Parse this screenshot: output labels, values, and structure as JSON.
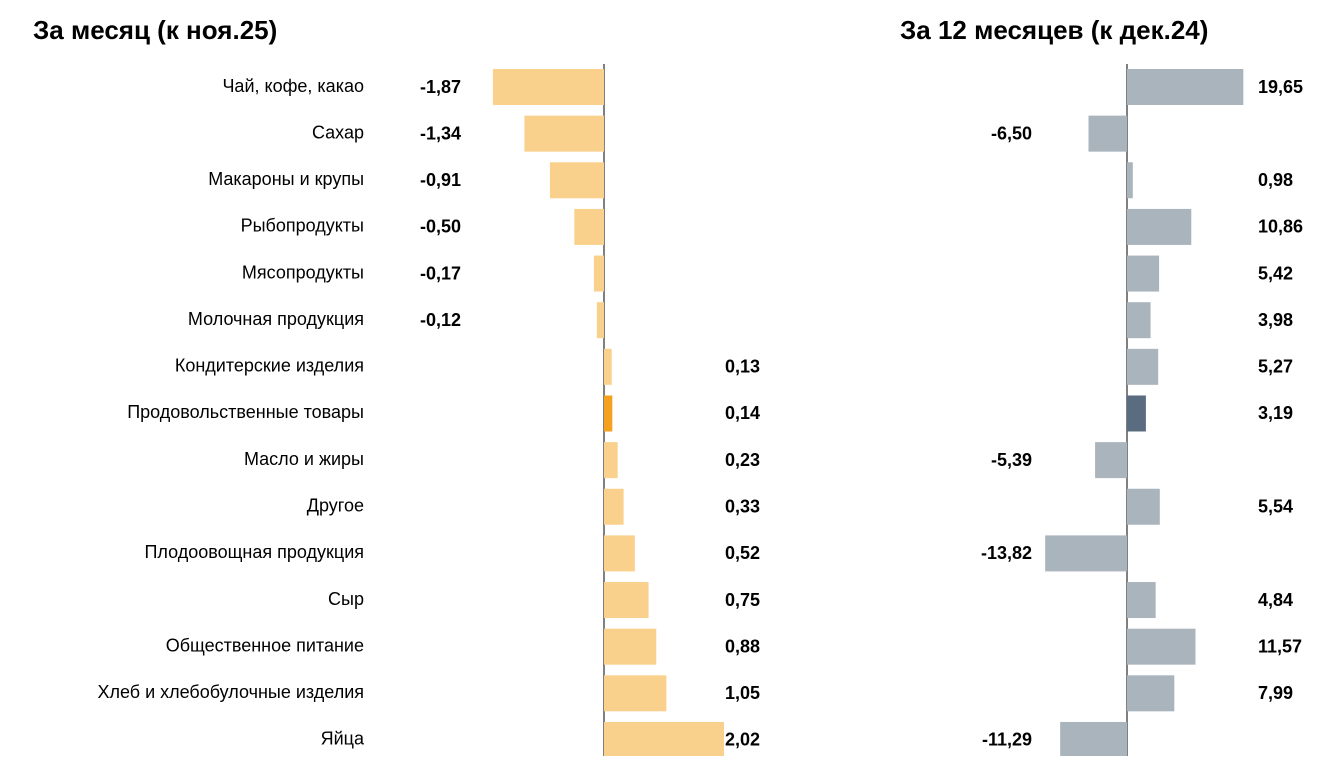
{
  "chart_data": [
    {
      "type": "barh",
      "title": "За месяц (к ноя.25)",
      "categories": [
        "Чай, кофе, какао",
        "Сахар",
        "Макароны и крупы",
        "Рыбопродукты",
        "Мясопродукты",
        "Молочная продукция",
        "Кондитерские изделия",
        "Продовольственные товары",
        "Масло и жиры",
        "Другое",
        "Плодоовощная продукция",
        "Сыр",
        "Общественное питание",
        "Хлеб и хлебобулочные изделия",
        "Яйца"
      ],
      "values": [
        -1.87,
        -1.34,
        -0.91,
        -0.5,
        -0.17,
        -0.12,
        0.13,
        0.14,
        0.23,
        0.33,
        0.52,
        0.75,
        0.88,
        1.05,
        2.02
      ],
      "value_labels": [
        "-1,87",
        "-1,34",
        "-0,91",
        "-0,50",
        "-0,17",
        "-0,12",
        "0,13",
        "0,14",
        "0,23",
        "0,33",
        "0,52",
        "0,75",
        "0,88",
        "1,05",
        "2,02"
      ],
      "colors": [
        "#fad18c",
        "#fad18c",
        "#fad18c",
        "#fad18c",
        "#fad18c",
        "#fad18c",
        "#fad18c",
        "#f5a01e",
        "#fad18c",
        "#fad18c",
        "#fad18c",
        "#fad18c",
        "#fad18c",
        "#fad18c",
        "#fad18c"
      ]
    },
    {
      "type": "barh",
      "title": "За 12 месяцев (к дек.24)",
      "values": [
        19.65,
        -6.5,
        0.98,
        10.86,
        5.42,
        3.98,
        5.27,
        3.19,
        -5.39,
        5.54,
        -13.82,
        4.84,
        11.57,
        7.99,
        -11.29
      ],
      "value_labels": [
        "19,65",
        "-6,50",
        "0,98",
        "10,86",
        "5,42",
        "3,98",
        "5,27",
        "3,19",
        "-5,39",
        "5,54",
        "-13,82",
        "4,84",
        "11,57",
        "7,99",
        "-11,29"
      ],
      "colors": [
        "#aab4bd",
        "#aab4bd",
        "#aab4bd",
        "#aab4bd",
        "#aab4bd",
        "#aab4bd",
        "#aab4bd",
        "#5a6c7f",
        "#aab4bd",
        "#aab4bd",
        "#aab4bd",
        "#aab4bd",
        "#aab4bd",
        "#aab4bd",
        "#aab4bd"
      ]
    }
  ]
}
